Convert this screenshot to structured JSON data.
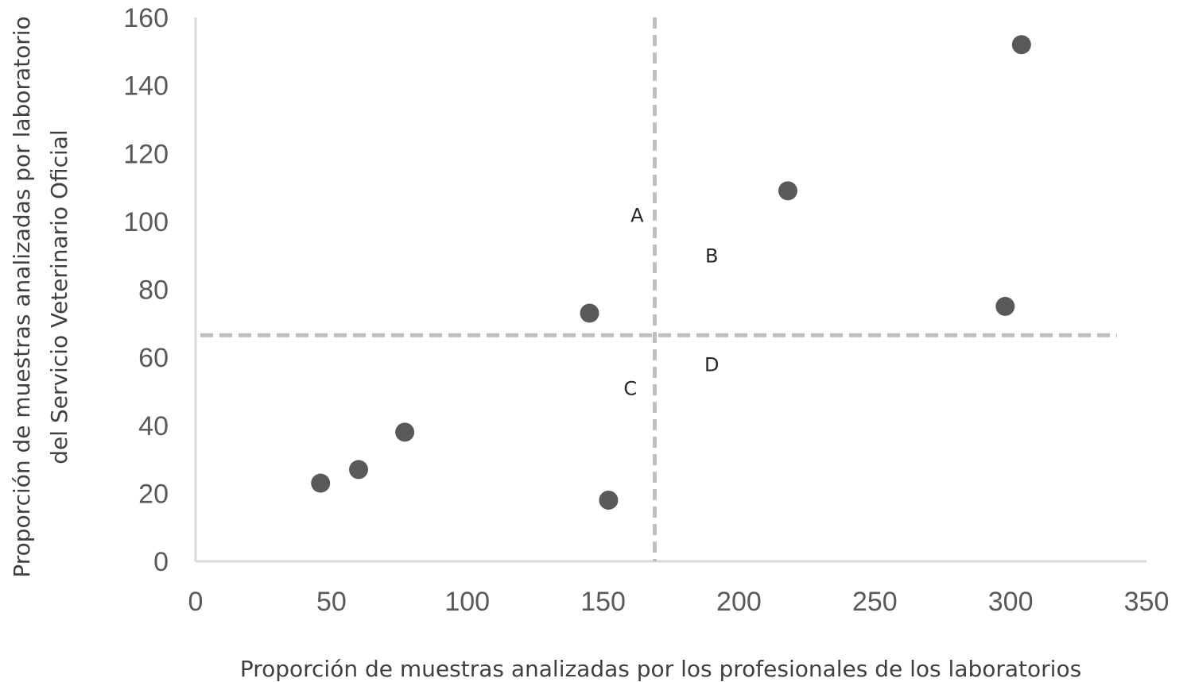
{
  "chart_data": {
    "type": "scatter",
    "title": "",
    "xlabel": "Proporción de muestras analizadas por los profesionales de los laboratorios",
    "ylabel_lines": [
      "Proporción de muestras analizadas por laboratorio",
      "del Servicio Veterinario Oficial"
    ],
    "xlim": [
      0,
      350
    ],
    "ylim": [
      0,
      160
    ],
    "x_ticks": [
      0,
      50,
      100,
      150,
      200,
      250,
      300,
      350
    ],
    "y_ticks": [
      0,
      20,
      40,
      60,
      80,
      100,
      120,
      140,
      160
    ],
    "grid": false,
    "legend": "none",
    "marker_color": "#595959",
    "reference_line_color": "#bfbfbf",
    "series": [
      {
        "points": [
          {
            "x": 46,
            "y": 23
          },
          {
            "x": 60,
            "y": 27
          },
          {
            "x": 77,
            "y": 38
          },
          {
            "x": 145,
            "y": 73
          },
          {
            "x": 152,
            "y": 18
          },
          {
            "x": 218,
            "y": 109
          },
          {
            "x": 298,
            "y": 75
          },
          {
            "x": 304,
            "y": 152
          }
        ]
      }
    ],
    "reference_lines": {
      "vertical_x": 169,
      "horizontal_y": 66.5
    },
    "quadrant_labels": [
      {
        "text": "A",
        "x": 162.5,
        "y": 102
      },
      {
        "text": "B",
        "x": 190,
        "y": 90
      },
      {
        "text": "C",
        "x": 160,
        "y": 51
      },
      {
        "text": "D",
        "x": 190,
        "y": 58
      }
    ]
  }
}
